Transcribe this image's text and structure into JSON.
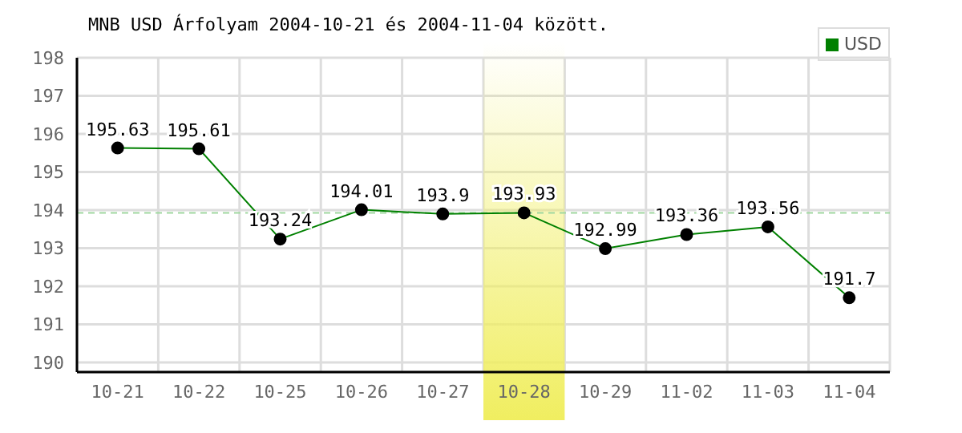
{
  "chart_data": {
    "type": "line",
    "title": "MNB USD Árfolyam 2004-10-21 és 2004-11-04 között.",
    "categories": [
      "10-21",
      "10-22",
      "10-25",
      "10-26",
      "10-27",
      "10-28",
      "10-29",
      "11-02",
      "11-03",
      "11-04"
    ],
    "series": [
      {
        "name": "USD",
        "color": "#008000",
        "values": [
          195.63,
          195.61,
          193.24,
          194.01,
          193.9,
          193.93,
          192.99,
          193.36,
          193.56,
          191.7
        ]
      }
    ],
    "ylim": [
      189.75,
      198
    ],
    "yticks": [
      190,
      191,
      192,
      193,
      194,
      195,
      196,
      197,
      198
    ],
    "ref_lines": [
      {
        "axis": "y",
        "value": 193.93,
        "color": "#a0d8a0",
        "line_style": "dashed"
      }
    ],
    "bands": [
      {
        "axis": "x",
        "from": "10-28",
        "to": "10-28",
        "color": "#f0ee60"
      }
    ],
    "grid": true,
    "legend": "top right",
    "marker": "circle",
    "data_labels": true
  }
}
